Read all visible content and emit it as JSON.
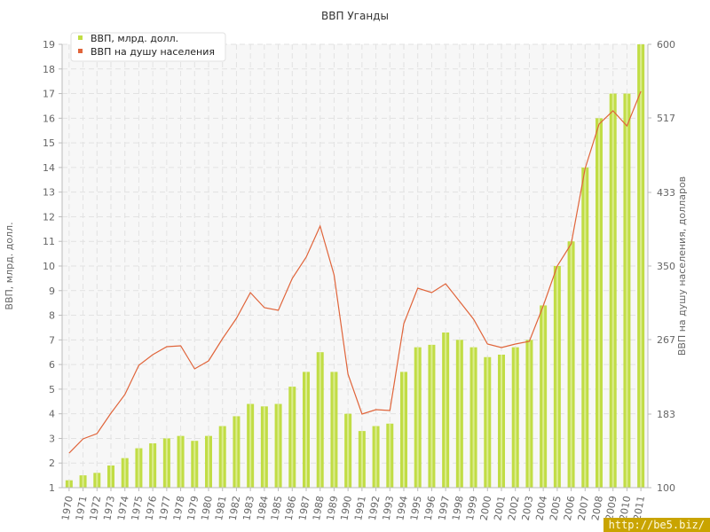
{
  "chart_data": {
    "type": "bar+line",
    "title": "ВВП Уганды",
    "categories": [
      "1970",
      "1971",
      "1972",
      "1973",
      "1974",
      "1975",
      "1976",
      "1977",
      "1978",
      "1979",
      "1980",
      "1981",
      "1982",
      "1983",
      "1984",
      "1985",
      "1986",
      "1987",
      "1988",
      "1989",
      "1990",
      "1991",
      "1992",
      "1993",
      "1994",
      "1995",
      "1996",
      "1997",
      "1998",
      "1999",
      "2000",
      "2001",
      "2002",
      "2003",
      "2004",
      "2005",
      "2006",
      "2007",
      "2008",
      "2009",
      "2010",
      "2011"
    ],
    "series": [
      {
        "name": "ВВП, млрд. долл.",
        "type": "bar",
        "axis": "left",
        "values": [
          1.3,
          1.5,
          1.6,
          1.9,
          2.2,
          2.6,
          2.8,
          3.0,
          3.1,
          2.9,
          3.1,
          3.5,
          3.9,
          4.4,
          4.3,
          4.4,
          5.1,
          5.7,
          6.5,
          5.7,
          4.0,
          3.3,
          3.5,
          3.6,
          5.7,
          6.7,
          6.8,
          7.3,
          7.0,
          6.7,
          6.3,
          6.4,
          6.7,
          7.0,
          8.4,
          10.0,
          11.0,
          14.0,
          16.0,
          17.0,
          17.0,
          19.0
        ]
      },
      {
        "name": "ВВП на душу населения",
        "type": "line",
        "axis": "right",
        "values": [
          139,
          155,
          161,
          184,
          205,
          238,
          250,
          259,
          260,
          234,
          243,
          268,
          291,
          320,
          303,
          300,
          336,
          360,
          395,
          340,
          228,
          183,
          188,
          187,
          285,
          325,
          320,
          330,
          310,
          290,
          262,
          258,
          262,
          265,
          305,
          350,
          375,
          460,
          510,
          525,
          508,
          547
        ]
      }
    ],
    "ylabel": "ВВП, млрд. долл.",
    "y2label": "ВВП на душу населения, долларов",
    "ylim": [
      1,
      19
    ],
    "yticks": [
      "1",
      "2",
      "3",
      "4",
      "5",
      "6",
      "7",
      "8",
      "9",
      "10",
      "11",
      "12",
      "13",
      "14",
      "15",
      "16",
      "17",
      "18",
      "19"
    ],
    "y2lim": [
      100,
      600
    ],
    "y2ticks": [
      "100",
      "183",
      "267",
      "350",
      "433",
      "517",
      "600"
    ],
    "grid": true,
    "legend": "top-left",
    "colors": {
      "bar": "#c1dd45",
      "bar_stripe": "#dbec8f",
      "line": "#e0643a",
      "plot_bg": "#f7f7f7",
      "grid": "#e2e2e2"
    }
  },
  "watermark": "http://be5.biz/"
}
